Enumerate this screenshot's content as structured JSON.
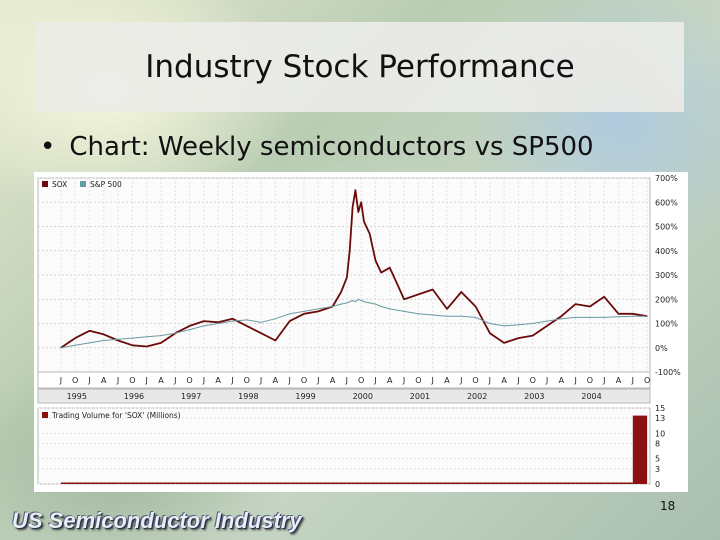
{
  "slide": {
    "title": "Industry Stock Performance",
    "bullet": "Chart: Weekly semiconductors vs SP500",
    "footer": "US Semiconductor Industry",
    "page_number": "18"
  },
  "colors": {
    "sox": "#6b0a0a",
    "sp500": "#6a9aa3",
    "volume": "#8b1010"
  },
  "chart_data": [
    {
      "type": "line",
      "legend": [
        "SOX",
        "S&P 500"
      ],
      "yaxis_ticks": [
        "700%",
        "600%",
        "500%",
        "400%",
        "300%",
        "200%",
        "100%",
        "0%",
        "-100%"
      ],
      "ylim": [
        -100,
        700
      ],
      "month_labels": [
        "J",
        "O",
        "J",
        "A",
        "J",
        "O",
        "J",
        "A",
        "J",
        "O",
        "J",
        "A",
        "J",
        "O",
        "J",
        "A",
        "J",
        "O",
        "J",
        "A",
        "J",
        "O",
        "J",
        "A",
        "J",
        "O",
        "J",
        "A",
        "J",
        "O",
        "J",
        "A",
        "J",
        "O",
        "J",
        "A",
        "J",
        "O",
        "J",
        "A",
        "J",
        "O",
        "J"
      ],
      "year_labels": [
        "1995",
        "1996",
        "1997",
        "1998",
        "1999",
        "2000",
        "2001",
        "2002",
        "2003",
        "2004"
      ],
      "x": [
        1995.0,
        1995.25,
        1995.5,
        1995.75,
        1996.0,
        1996.25,
        1996.5,
        1996.75,
        1997.0,
        1997.25,
        1997.5,
        1997.75,
        1998.0,
        1998.25,
        1998.5,
        1998.75,
        1999.0,
        1999.25,
        1999.5,
        1999.75,
        1999.9,
        2000.0,
        2000.05,
        2000.1,
        2000.15,
        2000.2,
        2000.25,
        2000.3,
        2000.4,
        2000.5,
        2000.6,
        2000.75,
        2001.0,
        2001.25,
        2001.5,
        2001.75,
        2002.0,
        2002.25,
        2002.5,
        2002.75,
        2003.0,
        2003.25,
        2003.5,
        2003.75,
        2004.0,
        2004.25,
        2004.5,
        2004.75,
        2005.0,
        2005.25
      ],
      "series": [
        {
          "name": "SOX",
          "values": [
            0,
            40,
            70,
            55,
            30,
            10,
            5,
            20,
            60,
            90,
            110,
            105,
            120,
            90,
            60,
            30,
            110,
            140,
            150,
            170,
            230,
            290,
            400,
            580,
            650,
            560,
            600,
            520,
            470,
            360,
            310,
            330,
            200,
            220,
            240,
            160,
            230,
            170,
            60,
            20,
            40,
            50,
            90,
            130,
            180,
            170,
            210,
            140,
            140,
            130
          ]
        },
        {
          "name": "S&P 500",
          "values": [
            0,
            10,
            20,
            30,
            35,
            40,
            45,
            50,
            60,
            75,
            90,
            100,
            110,
            115,
            105,
            120,
            140,
            150,
            160,
            170,
            180,
            185,
            190,
            195,
            190,
            200,
            195,
            190,
            185,
            180,
            170,
            160,
            150,
            140,
            135,
            130,
            130,
            125,
            100,
            90,
            95,
            100,
            110,
            120,
            125,
            125,
            125,
            128,
            130,
            130
          ]
        }
      ]
    },
    {
      "type": "bar",
      "title": "Trading Volume for 'SOX' (Millions)",
      "yaxis_ticks": [
        "15",
        "13",
        "10",
        "8",
        "5",
        "3",
        "0"
      ],
      "ylim": [
        0,
        15
      ],
      "x": [
        1995.0,
        1996.0,
        1997.0,
        1998.0,
        1999.0,
        2000.0,
        2001.0,
        2002.0,
        2003.0,
        2004.0,
        2004.5,
        2004.75,
        2005.0,
        2005.25
      ],
      "values": [
        0.3,
        0.3,
        0.3,
        0.3,
        0.3,
        0.3,
        0.3,
        0.3,
        0.3,
        0.3,
        0.3,
        0.3,
        13.5,
        13.5
      ]
    }
  ]
}
